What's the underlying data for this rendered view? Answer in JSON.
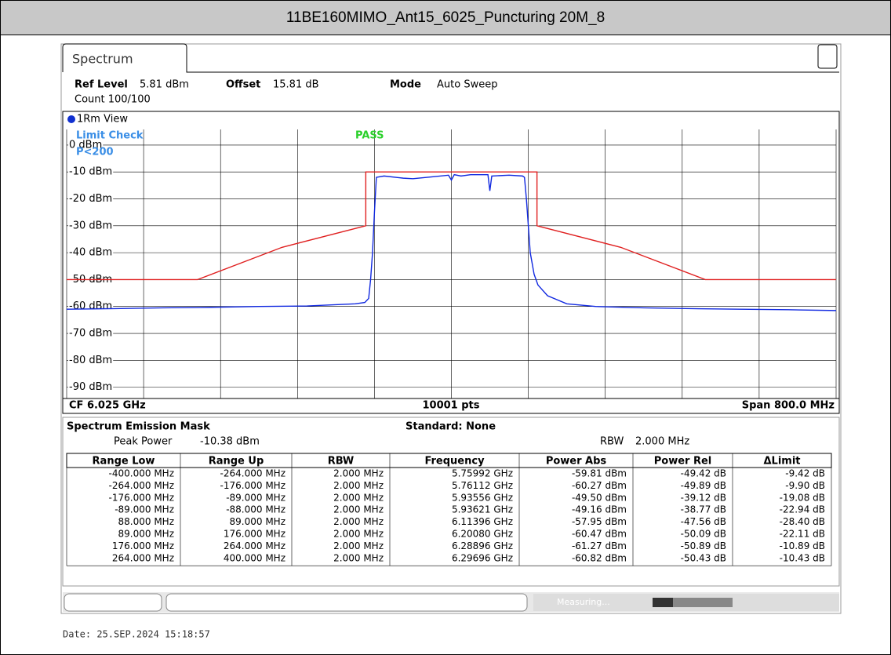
{
  "title": "11BE160MIMO_Ant15_6025_Puncturing 20M_8",
  "tab": "Spectrum",
  "header": {
    "ref_level_label": "Ref Level",
    "ref_level": "5.81 dBm",
    "offset_label": "Offset",
    "offset": "15.81 dB",
    "mode_label": "Mode",
    "mode": "Auto Sweep",
    "count": "Count 100/100"
  },
  "plot": {
    "view": "1Rm View",
    "limit_check": "Limit Check",
    "limit_name": "P<200",
    "result": "PASS",
    "xlim": [
      -400,
      400
    ],
    "ylim": [
      -94.19,
      5.81
    ],
    "yticks": [
      {
        "value": 0,
        "label": "0 dBm"
      },
      {
        "value": -10,
        "label": "-10 dBm"
      },
      {
        "value": -20,
        "label": "-20 dBm"
      },
      {
        "value": -30,
        "label": "-30 dBm"
      },
      {
        "value": -40,
        "label": "-40 dBm"
      },
      {
        "value": -50,
        "label": "-50 dBm"
      },
      {
        "value": -60,
        "label": "-60 dBm"
      },
      {
        "value": -70,
        "label": "-70 dBm"
      },
      {
        "value": -80,
        "label": "-80 dBm"
      },
      {
        "value": -90,
        "label": "-90 dBm"
      }
    ],
    "xgrid": [
      -400,
      -320,
      -240,
      -160,
      -80,
      0,
      80,
      160,
      240,
      320,
      400
    ],
    "limit": {
      "color": "#e02020",
      "x": [
        -400,
        -264,
        -176,
        -89,
        -89,
        89,
        89,
        176,
        264,
        400
      ],
      "values": [
        -50,
        -50,
        -38,
        -30,
        -10,
        -10,
        -30,
        -38,
        -50,
        -50
      ]
    },
    "trace": {
      "color": "#1028e0",
      "x": [
        -400,
        -350,
        -300,
        -250,
        -200,
        -150,
        -100,
        -90,
        -86,
        -84,
        -82,
        -80,
        -78,
        -70,
        -50,
        -40,
        -20,
        -3,
        0,
        3,
        10,
        20,
        38,
        40,
        42,
        60,
        74,
        76,
        78,
        80,
        82,
        86,
        90,
        100,
        120,
        150,
        200,
        250,
        300,
        350,
        400
      ],
      "values": [
        -61,
        -60.8,
        -60.5,
        -60.3,
        -60,
        -59.8,
        -59,
        -58.5,
        -57,
        -50,
        -40,
        -25,
        -12,
        -11.5,
        -12.3,
        -12.5,
        -11.8,
        -11.2,
        -13,
        -11,
        -11.5,
        -11,
        -11,
        -17,
        -11.5,
        -11.2,
        -11.5,
        -12,
        -20,
        -30,
        -40,
        -48,
        -52,
        -56,
        -59,
        -60,
        -60.5,
        -60.8,
        -61,
        -61.2,
        -61.5
      ]
    },
    "cf": "CF 6.025 GHz",
    "pts": "10001 pts",
    "span": "Span 800.0 MHz"
  },
  "mask": {
    "title": "Spectrum Emission Mask",
    "standard": "Standard: None",
    "peak_power_label": "Peak Power",
    "peak_power": "-10.38 dBm",
    "rbw_label": "RBW",
    "rbw": "2.000 MHz",
    "columns": [
      "Range Low",
      "Range Up",
      "RBW",
      "Frequency",
      "Power Abs",
      "Power Rel",
      "ΔLimit"
    ],
    "rows": [
      [
        "-400.000 MHz",
        "-264.000 MHz",
        "2.000 MHz",
        "5.75992 GHz",
        "-59.81 dBm",
        "-49.42 dB",
        "-9.42 dB"
      ],
      [
        "-264.000 MHz",
        "-176.000 MHz",
        "2.000 MHz",
        "5.76112 GHz",
        "-60.27 dBm",
        "-49.89 dB",
        "-9.90 dB"
      ],
      [
        "-176.000 MHz",
        "-89.000 MHz",
        "2.000 MHz",
        "5.93556 GHz",
        "-49.50 dBm",
        "-39.12 dB",
        "-19.08 dB"
      ],
      [
        "-89.000 MHz",
        "-88.000 MHz",
        "2.000 MHz",
        "5.93621 GHz",
        "-49.16 dBm",
        "-38.77 dB",
        "-22.94 dB"
      ],
      [
        "88.000 MHz",
        "89.000 MHz",
        "2.000 MHz",
        "6.11396 GHz",
        "-57.95 dBm",
        "-47.56 dB",
        "-28.40 dB"
      ],
      [
        "89.000 MHz",
        "176.000 MHz",
        "2.000 MHz",
        "6.20080 GHz",
        "-60.47 dBm",
        "-50.09 dB",
        "-22.11 dB"
      ],
      [
        "176.000 MHz",
        "264.000 MHz",
        "2.000 MHz",
        "6.28896 GHz",
        "-61.27 dBm",
        "-50.89 dB",
        "-10.89 dB"
      ],
      [
        "264.000 MHz",
        "400.000 MHz",
        "2.000 MHz",
        "6.29696 GHz",
        "-60.82 dBm",
        "-50.43 dB",
        "-10.43 dB"
      ]
    ]
  },
  "status": "Measuring...",
  "date": "Date: 25.SEP.2024  15:18:57"
}
